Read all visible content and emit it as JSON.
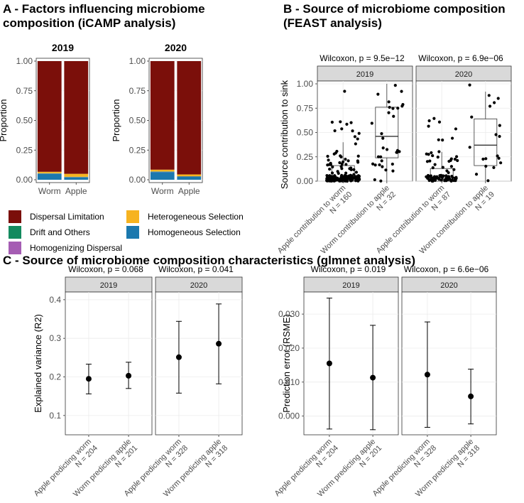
{
  "panelA": {
    "title_line1": "A - Factors influencing microbiome",
    "title_line2": "composition (iCAMP analysis)",
    "ylabel": "Proportion",
    "yticks": [
      "0.00",
      "0.25",
      "0.50",
      "0.75",
      "1.00"
    ],
    "legend": [
      {
        "label": "Dispersal Limitation",
        "color": "#7b0f0a"
      },
      {
        "label": "Drift and Others",
        "color": "#138a5e"
      },
      {
        "label": "Homogenizing Dispersal",
        "color": "#a55db3"
      },
      {
        "label": "Heterogeneous Selection",
        "color": "#f6b320"
      },
      {
        "label": "Homogeneous Selection",
        "color": "#1b78ae"
      }
    ]
  },
  "panelB": {
    "title_line1": "B - Source of microbiome composition",
    "title_line2": "(FEAST analysis)",
    "ylabel": "Source contribution to sink",
    "yticks": [
      "0.00",
      "0.25",
      "0.50",
      "0.75",
      "1.00"
    ]
  },
  "panelC": {
    "title": "C - Source of microbiome composition characteristics (glmnet analysis)",
    "left_ylabel": "Explained variance (R2)",
    "left_yticks": [
      "0.1",
      "0.2",
      "0.3",
      "0.4"
    ],
    "right_ylabel": "Prediction error (RSME)",
    "right_yticks": [
      "0.000",
      "0.010",
      "0.020",
      "0.030"
    ]
  },
  "chart_data": [
    {
      "type": "bar",
      "title": "2019",
      "ylabel": "Proportion",
      "ylim": [
        0,
        1
      ],
      "categories": [
        "Worm",
        "Apple"
      ],
      "series": [
        {
          "name": "Homogeneous Selection",
          "values": [
            0.05,
            0.02
          ]
        },
        {
          "name": "Homogenizing Dispersal",
          "values": [
            0.002,
            0.002
          ]
        },
        {
          "name": "Drift and Others",
          "values": [
            0.003,
            0.003
          ]
        },
        {
          "name": "Heterogeneous Selection",
          "values": [
            0.012,
            0.025
          ]
        },
        {
          "name": "Dispersal Limitation",
          "values": [
            0.933,
            0.95
          ]
        }
      ]
    },
    {
      "type": "bar",
      "title": "2020",
      "ylabel": "Proportion",
      "ylim": [
        0,
        1
      ],
      "categories": [
        "Worm",
        "Apple"
      ],
      "series": [
        {
          "name": "Homogeneous Selection",
          "values": [
            0.065,
            0.025
          ]
        },
        {
          "name": "Homogenizing Dispersal",
          "values": [
            0.002,
            0.002
          ]
        },
        {
          "name": "Drift and Others",
          "values": [
            0.003,
            0.003
          ]
        },
        {
          "name": "Heterogeneous Selection",
          "values": [
            0.015,
            0.015
          ]
        },
        {
          "name": "Dispersal Limitation",
          "values": [
            0.915,
            0.955
          ]
        }
      ]
    },
    {
      "type": "scatter",
      "subtype": "box-jitter",
      "ylabel": "Source contribution to sink",
      "ylim": [
        0,
        1
      ],
      "categories": [
        "Apple contribution to worm\nN = 160",
        "Worm contribution to apple\nN = 32"
      ],
      "facets": [
        {
          "strip": "2019",
          "wilcoxon": "Wilcoxon, p = 9.5e−12",
          "groups": [
            {
              "label": "Apple contribution to worm",
              "n": "N = 160",
              "box": {
                "min": 0.0,
                "q1": 0.0,
                "median": 0.03,
                "q3": 0.16,
                "max": 0.4
              }
            },
            {
              "label": "Worm contribution to apple",
              "n": "N = 32",
              "box": {
                "min": 0.0,
                "q1": 0.24,
                "median": 0.46,
                "q3": 0.76,
                "max": 1.0
              }
            }
          ]
        },
        {
          "strip": "2020",
          "wilcoxon": "Wilcoxon, p = 6.9e−06",
          "groups": [
            {
              "label": "Apple contribution to worm",
              "n": "N = 87",
              "box": {
                "min": 0.0,
                "q1": 0.0,
                "median": 0.02,
                "q3": 0.13,
                "max": 0.3
              }
            },
            {
              "label": "Worm contribution to apple",
              "n": "N = 19",
              "box": {
                "min": 0.0,
                "q1": 0.16,
                "median": 0.37,
                "q3": 0.64,
                "max": 0.92
              }
            }
          ]
        }
      ]
    },
    {
      "type": "scatter",
      "subtype": "errorbar",
      "ylabel": "Explained variance (R2)",
      "ylim": [
        0.05,
        0.42
      ],
      "facets": [
        {
          "strip": "2019",
          "wilcoxon": "Wilcoxon, p = 0.068",
          "groups": [
            {
              "label": "Apple predicting worm",
              "n": "N = 204",
              "mean": 0.195,
              "low": 0.156,
              "high": 0.233
            },
            {
              "label": "Worm predicting apple",
              "n": "N = 201",
              "mean": 0.203,
              "low": 0.17,
              "high": 0.238
            }
          ]
        },
        {
          "strip": "2020",
          "wilcoxon": "Wilcoxon, p = 0.041",
          "groups": [
            {
              "label": "Apple predicting worm",
              "n": "N = 328",
              "mean": 0.251,
              "low": 0.158,
              "high": 0.344
            },
            {
              "label": "Worm predicting apple",
              "n": "N = 318",
              "mean": 0.286,
              "low": 0.182,
              "high": 0.389
            }
          ]
        }
      ]
    },
    {
      "type": "scatter",
      "subtype": "errorbar",
      "ylabel": "Prediction error (RSME)",
      "ylim": [
        -0.0055,
        0.0365
      ],
      "facets": [
        {
          "strip": "2019",
          "wilcoxon": "Wilcoxon, p = 0.019",
          "groups": [
            {
              "label": "Apple predicting worm",
              "n": "N = 204",
              "mean": 0.0155,
              "low": -0.0038,
              "high": 0.0347
            },
            {
              "label": "Worm predicting apple",
              "n": "N = 201",
              "mean": 0.0113,
              "low": -0.004,
              "high": 0.0267
            }
          ]
        },
        {
          "strip": "2020",
          "wilcoxon": "Wilcoxon, p = 6.6e−06",
          "groups": [
            {
              "label": "Apple predicting worm",
              "n": "N = 328",
              "mean": 0.0122,
              "low": -0.0033,
              "high": 0.0277
            },
            {
              "label": "Worm predicting apple",
              "n": "N = 318",
              "mean": 0.0058,
              "low": -0.0023,
              "high": 0.0138
            }
          ]
        }
      ]
    }
  ]
}
